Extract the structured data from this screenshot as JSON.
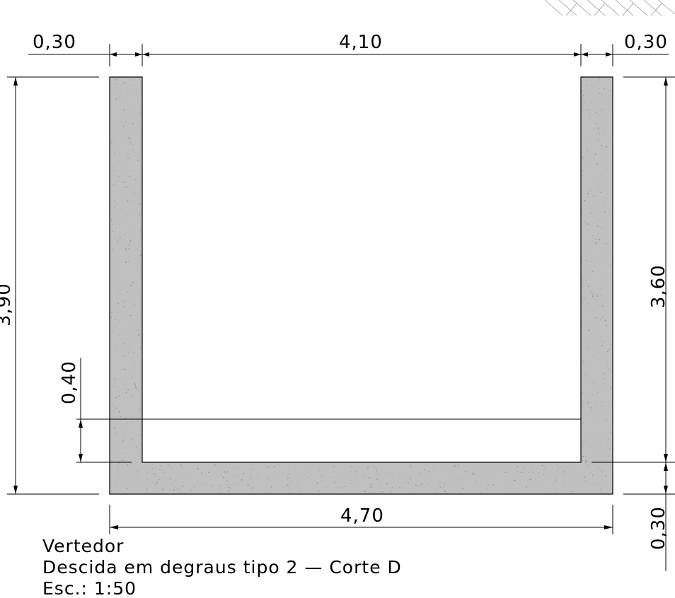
{
  "dimensions": {
    "left_wall_thickness": "0,30",
    "inner_width": "4,10",
    "right_wall_thickness": "0,30",
    "total_height": "3,90",
    "inner_height": "3,60",
    "water_depth": "0,40",
    "base_thickness": "0,30",
    "total_width": "4,70"
  },
  "caption": {
    "line1": "Vertedor",
    "line2": "Descida em degraus tipo 2 — Corte D",
    "line3": "Esc.: 1:50"
  },
  "colors": {
    "concrete_fill": "#c0c0c0",
    "line": "#000000",
    "background": "#ffffff"
  }
}
